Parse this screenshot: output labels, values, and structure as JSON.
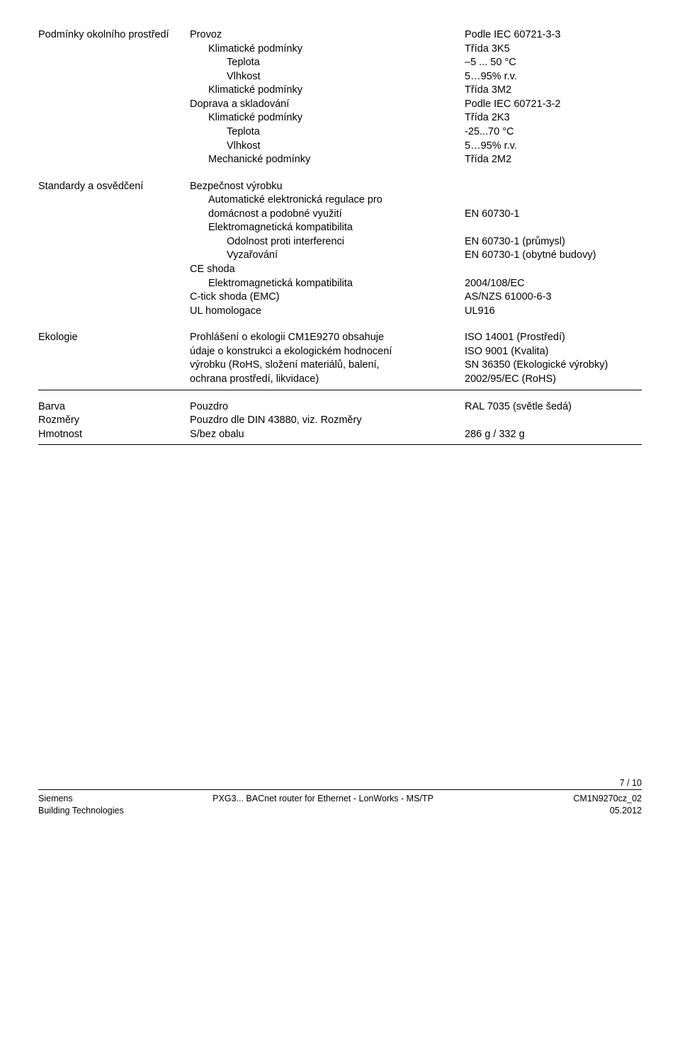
{
  "env": {
    "heading": "Podmínky okolního prostředí",
    "operation": {
      "label": "Provoz",
      "value": "Podle IEC 60721-3-3",
      "climate": {
        "label": "Klimatické podmínky",
        "value": "Třída 3K5"
      },
      "temp": {
        "label": "Teplota",
        "value": "–5 ... 50 °C"
      },
      "humid": {
        "label": "Vlhkost",
        "value": "5…95% r.v."
      },
      "climate2": {
        "label": "Klimatické podmínky",
        "value": "Třída 3M2"
      }
    },
    "transport": {
      "label": "Doprava a skladování",
      "value": "Podle IEC 60721-3-2",
      "climate": {
        "label": "Klimatické podmínky",
        "value": "Třída 2K3"
      },
      "temp": {
        "label": "Teplota",
        "value": "-25...70 °C"
      },
      "humid": {
        "label": "Vlhkost",
        "value": "5…95% r.v."
      },
      "mech": {
        "label": "Mechanické podmínky",
        "value": "Třída 2M2"
      }
    }
  },
  "standards": {
    "heading": "Standardy a osvědčení",
    "safety": "Bezpečnost výrobku",
    "autoreg_l1": "Automatické elektronická regulace pro",
    "autoreg_l2": "domácnost a podobné využití",
    "autoreg_val": "EN 60730-1",
    "emc": "Elektromagnetická kompatibilita",
    "immunity": {
      "label": "Odolnost proti interferenci",
      "value": "EN 60730-1 (průmysl)"
    },
    "emission": {
      "label": "Vyzařování",
      "value": "EN 60730-1 (obytné budovy)"
    },
    "ce": "CE shoda",
    "ce_emc": {
      "label": "Elektromagnetická kompatibilita",
      "value": "2004/108/EC"
    },
    "ctick": {
      "label": "C-tick shoda (EMC)",
      "value": "AS/NZS 61000-6-3"
    },
    "ul": {
      "label": "UL homologace",
      "value": "UL916"
    }
  },
  "ecology": {
    "heading": "Ekologie",
    "text_l1": "Prohlášení o ekologii CM1E9270 obsahuje",
    "text_l2": "údaje o konstrukci a ekologickém hodnocení",
    "text_l3": "výrobku (RoHS, složení materiálů, balení,",
    "text_l4": "ochrana prostředí, likvidace)",
    "v1": "ISO 14001 (Prostředí)",
    "v2": "ISO 9001 (Kvalita)",
    "v3": "SN 36350 (Ekologické výrobky)",
    "v4": "2002/95/EC (RoHS)"
  },
  "color": {
    "heading": "Barva",
    "label": "Pouzdro",
    "value": "RAL 7035 (světle šedá)"
  },
  "dims": {
    "heading": "Rozměry",
    "label": "Pouzdro dle DIN 43880, viz. Rozměry"
  },
  "weight": {
    "heading": "Hmotnost",
    "label": "S/bez obalu",
    "value": "286 g / 332 g"
  },
  "footer": {
    "page": "7 / 10",
    "l1_left": "Siemens",
    "l1_mid": "PXG3... BACnet router for Ethernet - LonWorks - MS/TP",
    "l1_right": "CM1N9270cz_02",
    "l2_left": "Building Technologies",
    "l2_right": "05.2012"
  }
}
